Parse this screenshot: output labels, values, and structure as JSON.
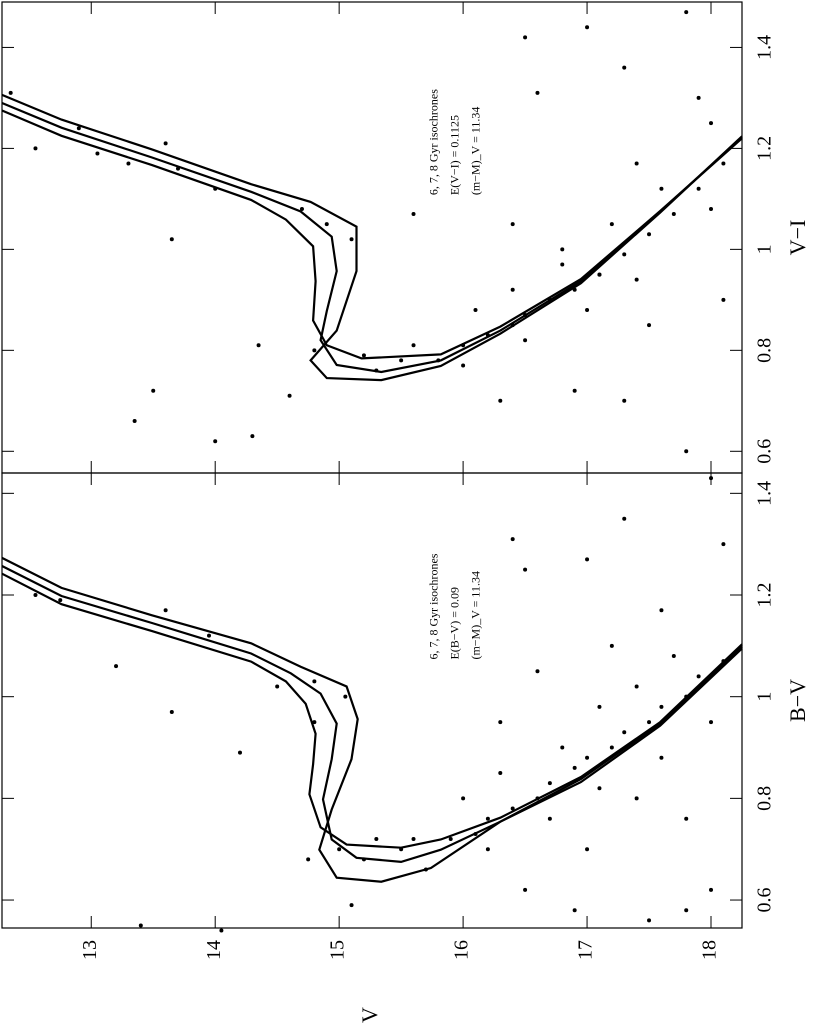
{
  "chart_data": [
    {
      "type": "scatter",
      "x_label": "B−V",
      "y_label": "V",
      "annotations": [
        "6, 7, 8 Gyr isochrones",
        "E(B−V) = 0.09",
        "(m−M)_V = 11.34"
      ],
      "xlim": [
        0.545,
        1.44
      ],
      "xticks": [
        0.6,
        0.8,
        1,
        1.2,
        1.4
      ],
      "ylim": [
        12.28,
        18.25
      ],
      "yticks": [
        13,
        14,
        15,
        16,
        17,
        18
      ],
      "color": "#000000",
      "lines": [
        {
          "x": [
            1.273,
            1.214,
            1.16,
            1.105,
            1.059,
            1.02,
            0.956,
            0.877,
            0.778,
            0.699,
            0.644,
            0.636,
            0.663,
            0.754,
            0.832,
            0.943,
            1.095
          ],
          "y": [
            12.28,
            12.76,
            13.49,
            14.29,
            14.69,
            15.06,
            15.15,
            15.1,
            14.94,
            14.84,
            14.98,
            15.34,
            15.74,
            16.3,
            16.95,
            17.59,
            18.25
          ]
        },
        {
          "x": [
            1.257,
            1.198,
            1.145,
            1.085,
            1.046,
            1.006,
            0.947,
            0.877,
            0.798,
            0.719,
            0.683,
            0.675,
            0.699,
            0.754,
            0.838,
            0.947,
            1.099
          ],
          "y": [
            12.28,
            12.76,
            13.49,
            14.29,
            14.61,
            14.85,
            14.98,
            14.94,
            14.87,
            14.94,
            15.14,
            15.5,
            15.82,
            16.3,
            16.95,
            17.59,
            18.25
          ]
        },
        {
          "x": [
            1.242,
            1.182,
            1.129,
            1.069,
            1.03,
            0.986,
            0.927,
            0.867,
            0.808,
            0.743,
            0.709,
            0.703,
            0.719,
            0.762,
            0.842,
            0.95,
            1.103
          ],
          "y": [
            12.28,
            12.76,
            13.49,
            14.29,
            14.57,
            14.73,
            14.81,
            14.79,
            14.76,
            14.85,
            15.06,
            15.5,
            15.82,
            16.3,
            16.95,
            17.59,
            18.25
          ]
        }
      ],
      "points": {
        "x": [
          1.2,
          1.19,
          1.06,
          1.17,
          1.12,
          1.02,
          1.03,
          1.0,
          0.95,
          0.55,
          0.97,
          0.89,
          0.54,
          0.59,
          0.72,
          1.31,
          1.25,
          1.27,
          1.35,
          1.43,
          0.58,
          0.62,
          0.62,
          0.58,
          0.56,
          0.7,
          0.8,
          0.76,
          0.95,
          1.05,
          1.1,
          1.17,
          1.3,
          0.68,
          0.7,
          0.66,
          0.72,
          0.73,
          0.76,
          0.78,
          0.8,
          0.83,
          0.86,
          0.88,
          0.9,
          0.93,
          0.95,
          0.98,
          1.0,
          1.04,
          1.07,
          0.8,
          0.85,
          0.9,
          0.98,
          1.02,
          1.08,
          0.7,
          0.76,
          0.82,
          0.88,
          0.95,
          0.72,
          0.7,
          0.68
        ],
        "y": [
          12.55,
          12.75,
          13.2,
          13.6,
          13.95,
          14.5,
          14.8,
          15.05,
          14.8,
          13.4,
          13.65,
          14.2,
          14.05,
          15.1,
          15.6,
          16.4,
          16.5,
          17.0,
          17.3,
          18.0,
          17.8,
          18.0,
          16.5,
          16.9,
          17.5,
          17.0,
          17.4,
          17.8,
          16.3,
          16.6,
          17.2,
          17.6,
          18.1,
          15.2,
          15.5,
          15.7,
          15.9,
          16.1,
          16.2,
          16.4,
          16.6,
          16.7,
          16.9,
          17.0,
          17.2,
          17.3,
          17.5,
          17.6,
          17.8,
          17.9,
          18.1,
          16.0,
          16.3,
          16.8,
          17.1,
          17.4,
          17.7,
          16.2,
          16.7,
          17.1,
          17.6,
          18.0,
          15.3,
          15.0,
          14.75
        ]
      }
    },
    {
      "type": "scatter",
      "x_label": "V−I",
      "annotations": [
        "6, 7, 8 Gyr isochrones",
        "E(V−I) = 0.1125",
        "(m−M)_V = 11.34"
      ],
      "xlim": [
        0.557,
        1.49
      ],
      "xticks": [
        0.6,
        0.8,
        1,
        1.2,
        1.4
      ],
      "ylim": [
        12.28,
        18.25
      ],
      "yticks": [
        13,
        14,
        15,
        16,
        17,
        18
      ],
      "color": "#000000",
      "lines": [
        {
          "x": [
            1.306,
            1.257,
            1.198,
            1.129,
            1.094,
            1.045,
            0.957,
            0.839,
            0.78,
            0.745,
            0.741,
            0.769,
            0.833,
            0.933,
            1.073,
            1.224
          ],
          "y": [
            12.28,
            12.76,
            13.49,
            14.29,
            14.77,
            15.14,
            15.14,
            14.98,
            14.77,
            14.9,
            15.34,
            15.82,
            16.3,
            16.95,
            17.59,
            18.25
          ]
        },
        {
          "x": [
            1.29,
            1.241,
            1.182,
            1.114,
            1.075,
            1.025,
            0.957,
            0.878,
            0.82,
            0.771,
            0.757,
            0.78,
            0.839,
            0.937,
            1.075,
            1.222
          ],
          "y": [
            12.28,
            12.76,
            13.49,
            14.29,
            14.69,
            14.94,
            14.98,
            14.9,
            14.85,
            14.98,
            15.34,
            15.82,
            16.3,
            16.95,
            17.59,
            18.25
          ]
        },
        {
          "x": [
            1.275,
            1.225,
            1.167,
            1.098,
            1.059,
            1.006,
            0.937,
            0.859,
            0.81,
            0.784,
            0.792,
            0.847,
            0.941,
            1.076,
            1.22
          ],
          "y": [
            12.28,
            12.76,
            13.49,
            14.29,
            14.57,
            14.79,
            14.81,
            14.79,
            14.9,
            15.18,
            15.82,
            16.3,
            16.95,
            17.59,
            18.25
          ]
        }
      ],
      "points": {
        "x": [
          1.31,
          1.2,
          1.19,
          1.21,
          1.16,
          1.02,
          0.72,
          0.66,
          0.63,
          0.62,
          0.71,
          0.81,
          1.07,
          1.42,
          1.31,
          1.44,
          1.36,
          1.47,
          1.3,
          1.25,
          1.17,
          0.6,
          0.7,
          0.72,
          0.7,
          0.85,
          0.9,
          1.05,
          1.0,
          0.95,
          1.24,
          1.17,
          1.12,
          1.08,
          1.05,
          1.02,
          0.8,
          0.79,
          0.78,
          0.78,
          0.81,
          0.83,
          0.85,
          0.87,
          0.9,
          0.92,
          0.95,
          0.99,
          1.03,
          1.07,
          1.12,
          1.17,
          0.88,
          0.92,
          0.97,
          1.05,
          1.12,
          0.77,
          0.82,
          0.88,
          0.94,
          1.08,
          0.76,
          0.81
        ],
        "y": [
          12.35,
          12.55,
          13.05,
          13.6,
          13.7,
          13.65,
          13.5,
          13.35,
          14.3,
          14.0,
          14.6,
          14.35,
          15.6,
          16.5,
          16.6,
          17.0,
          17.3,
          17.8,
          17.9,
          18.0,
          17.4,
          17.8,
          17.3,
          16.9,
          16.3,
          17.5,
          18.1,
          16.4,
          16.8,
          17.1,
          12.9,
          13.3,
          14.0,
          14.7,
          14.9,
          15.1,
          14.8,
          15.2,
          15.5,
          15.8,
          16.0,
          16.2,
          16.4,
          16.5,
          16.7,
          16.9,
          17.1,
          17.3,
          17.5,
          17.7,
          17.9,
          18.1,
          16.1,
          16.4,
          16.8,
          17.2,
          17.6,
          16.0,
          16.5,
          17.0,
          17.4,
          18.0,
          15.3,
          15.6
        ]
      }
    }
  ]
}
